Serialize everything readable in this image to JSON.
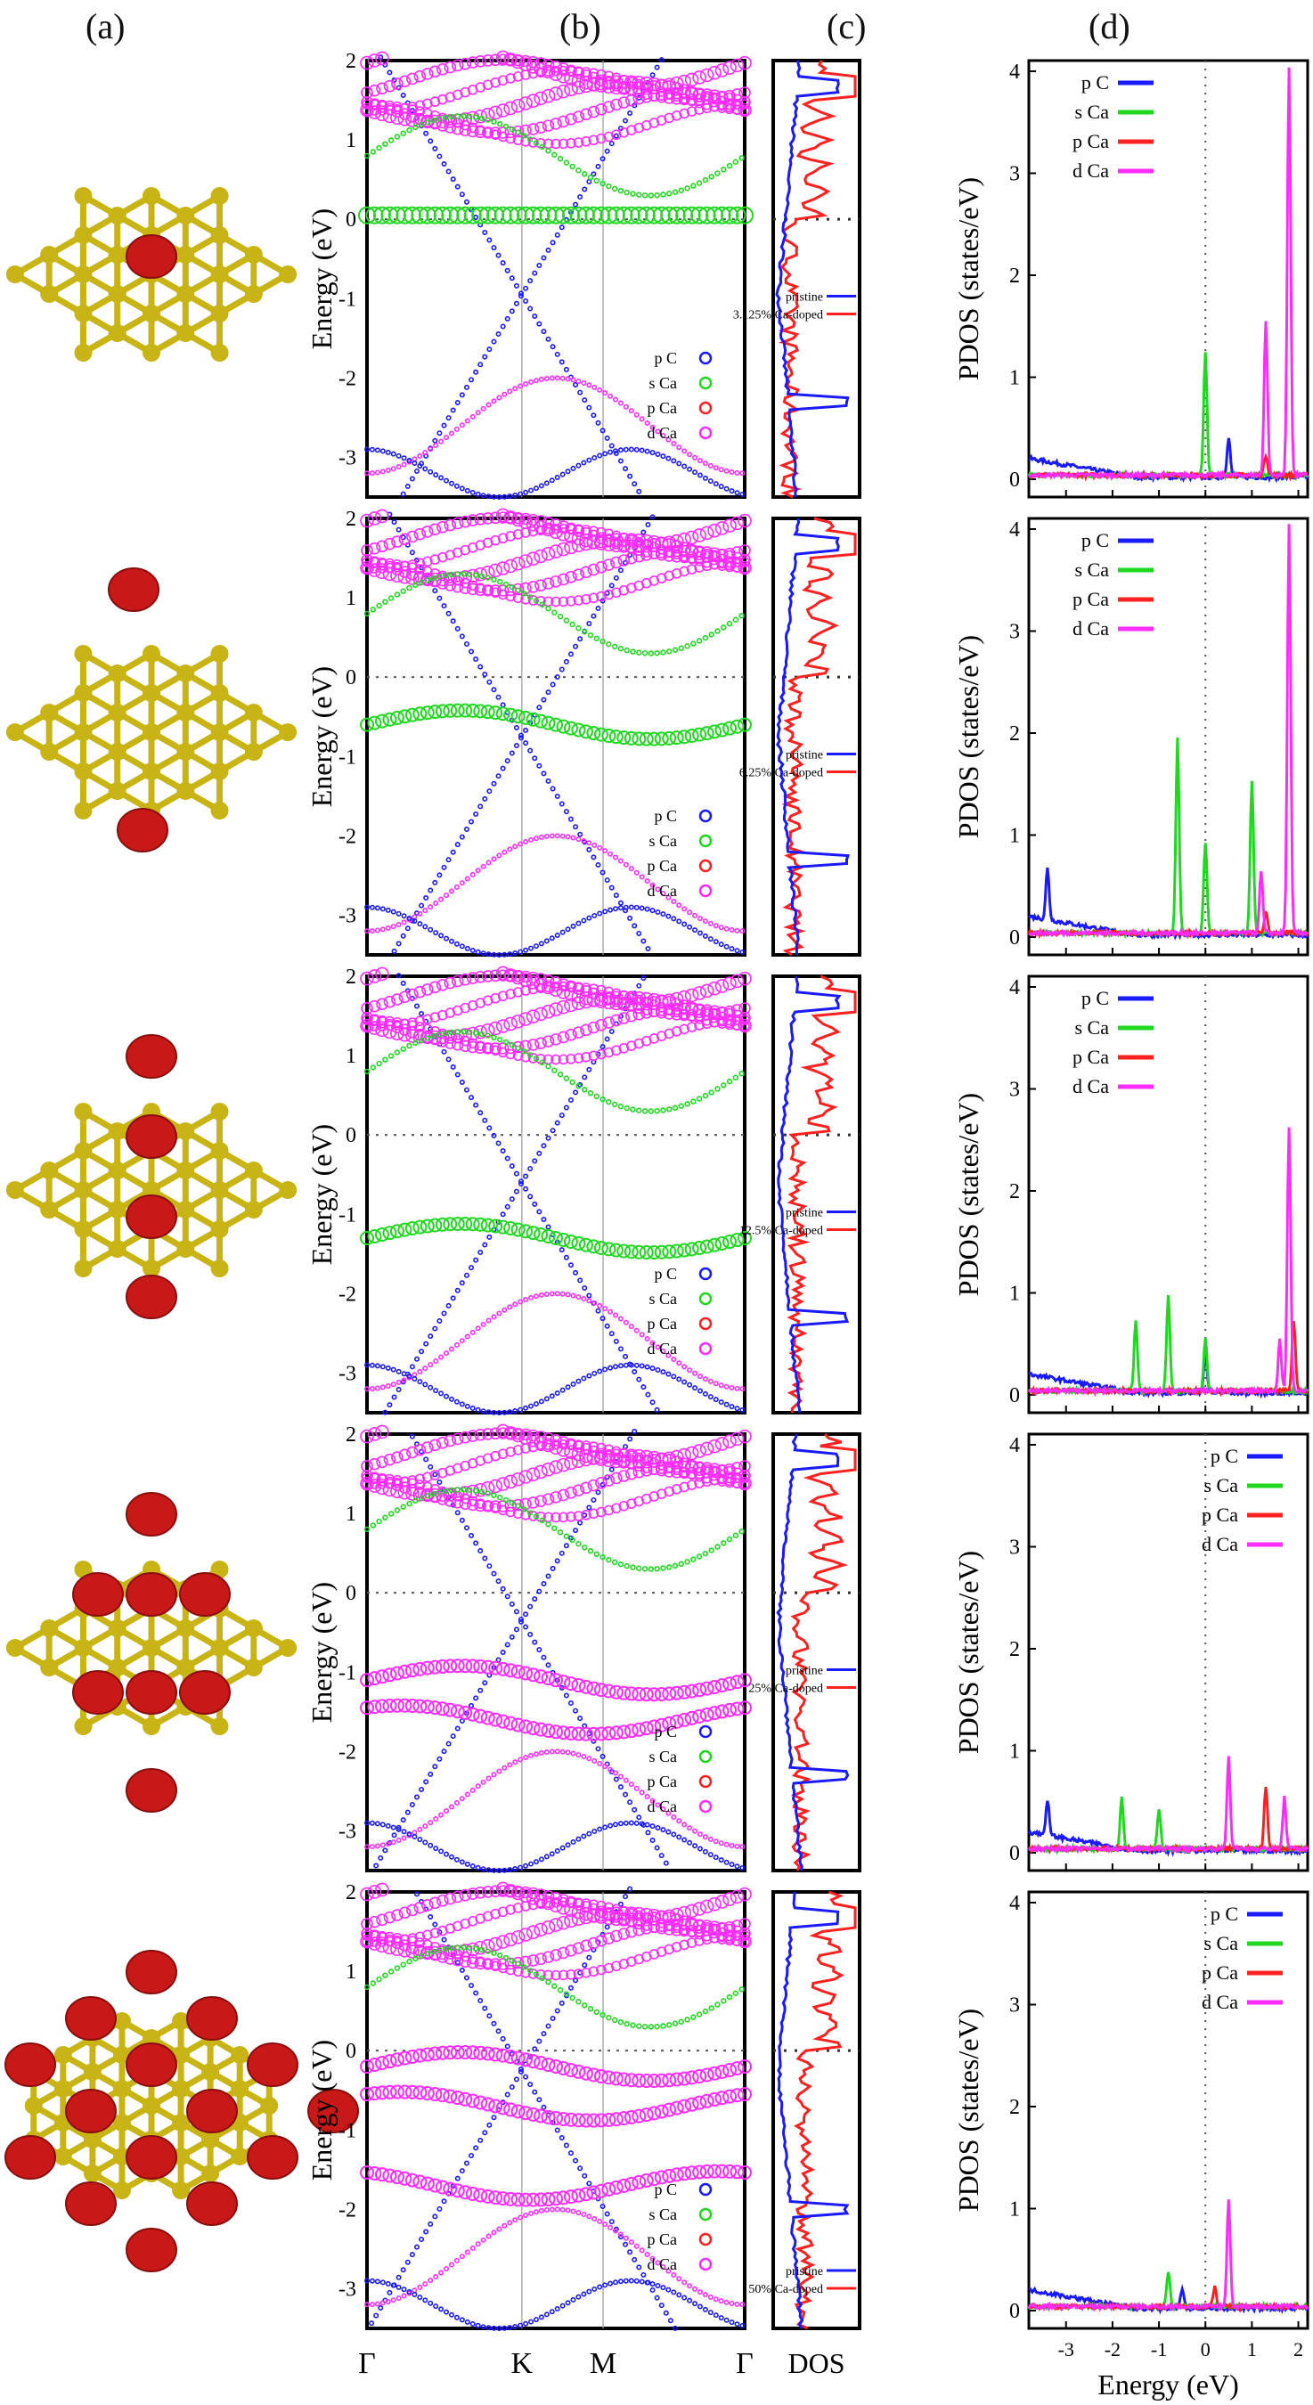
{
  "panel_labels": [
    "(a)",
    "(b)",
    "(c)",
    "(d)"
  ],
  "band_axis": {
    "ylabel": "Energy (eV)",
    "yticks": [
      "2",
      "1",
      "0",
      "-1",
      "-2",
      "-3"
    ],
    "kpoints": [
      "Γ",
      "K",
      "M",
      "Γ"
    ]
  },
  "pdos_axis": {
    "ylabel": "PDOS (states/eV)",
    "yticks": [
      "4",
      "3",
      "2",
      "1",
      "0"
    ],
    "xticks": [
      "-3",
      "-2",
      "-1",
      "0",
      "1",
      "2"
    ],
    "xlabel": "Energy (eV)"
  },
  "dos_xlabel": "DOS",
  "band_legend": [
    "p C",
    "s Ca",
    "p Ca",
    "d Ca"
  ],
  "pdos_legend": [
    "p C",
    "s Ca",
    "p Ca",
    "d Ca"
  ],
  "dos_legend_pristine": "pristine",
  "colors": {
    "pC": "#1a1aff",
    "sCa": "#1fd81f",
    "pCa": "#ff2020",
    "dCa": "#ff2cff",
    "carbon": "#c8b414",
    "calcium": "#c81818"
  },
  "rows": [
    {
      "doped_label": "3.125% Ca-doped",
      "pdos_legend_pos": "top-left",
      "ca_levels": [
        0.05
      ],
      "pdos_peaks": {
        "pC": [
          [
            0.5,
            0.4
          ]
        ],
        "sCa": [
          [
            0.0,
            1.2
          ]
        ],
        "pCa": [
          [
            1.3,
            0.2
          ]
        ],
        "dCa": [
          [
            1.3,
            1.5
          ],
          [
            1.8,
            4.0
          ]
        ]
      }
    },
    {
      "doped_label": "6.25% Ca-doped",
      "pdos_legend_pos": "top-left",
      "ca_levels": [
        -0.6
      ],
      "pdos_peaks": {
        "pC": [
          [
            -3.4,
            0.5
          ]
        ],
        "sCa": [
          [
            -0.6,
            1.9
          ],
          [
            0.0,
            0.9
          ],
          [
            1.0,
            1.5
          ]
        ],
        "pCa": [
          [
            1.3,
            0.2
          ]
        ],
        "dCa": [
          [
            1.2,
            0.6
          ],
          [
            1.8,
            4.0
          ]
        ]
      }
    },
    {
      "doped_label": "12.5% Ca-doped",
      "pdos_legend_pos": "top-left",
      "ca_levels": [
        -1.3
      ],
      "pdos_peaks": {
        "pC": [
          [
            0.0,
            0.4
          ]
        ],
        "sCa": [
          [
            -1.5,
            0.7
          ],
          [
            -0.8,
            0.95
          ],
          [
            0.0,
            0.5
          ]
        ],
        "pCa": [
          [
            1.9,
            0.7
          ]
        ],
        "dCa": [
          [
            1.6,
            0.5
          ],
          [
            1.8,
            2.6
          ]
        ]
      }
    },
    {
      "doped_label": "25% Ca-doped",
      "pdos_legend_pos": "top-right",
      "ca_levels": [
        -1.1,
        -1.6
      ],
      "pdos_peaks": {
        "pC": [
          [
            -3.4,
            0.35
          ]
        ],
        "sCa": [
          [
            -1.8,
            0.5
          ],
          [
            -1.0,
            0.4
          ]
        ],
        "pCa": [
          [
            1.3,
            0.6
          ]
        ],
        "dCa": [
          [
            0.5,
            0.9
          ],
          [
            1.7,
            0.5
          ]
        ]
      }
    },
    {
      "doped_label": "50% Ca-doped",
      "pdos_legend_pos": "top-right",
      "ca_levels": [
        -0.2,
        -0.7,
        -1.7
      ],
      "pdos_peaks": {
        "pC": [
          [
            -0.5,
            0.2
          ]
        ],
        "sCa": [
          [
            -0.8,
            0.35
          ]
        ],
        "pCa": [
          [
            0.2,
            0.2
          ]
        ],
        "dCa": [
          [
            0.5,
            1.05
          ]
        ]
      }
    }
  ],
  "chart_data": [
    {
      "type": "line",
      "description": "DOS comparison pristine vs Ca-doped (5 rows)",
      "xlabel": "DOS",
      "series": [
        {
          "name": "pristine"
        },
        {
          "name": "doped"
        }
      ]
    },
    {
      "type": "line",
      "title": "",
      "xlabel": "Energy (eV)",
      "ylabel": "PDOS (states/eV)",
      "xlim": [
        -3.8,
        2.2
      ],
      "ylim": [
        -0.1,
        4
      ],
      "series": [
        {
          "name": "p C"
        },
        {
          "name": "s Ca"
        },
        {
          "name": "p Ca"
        },
        {
          "name": "d Ca"
        }
      ]
    }
  ]
}
